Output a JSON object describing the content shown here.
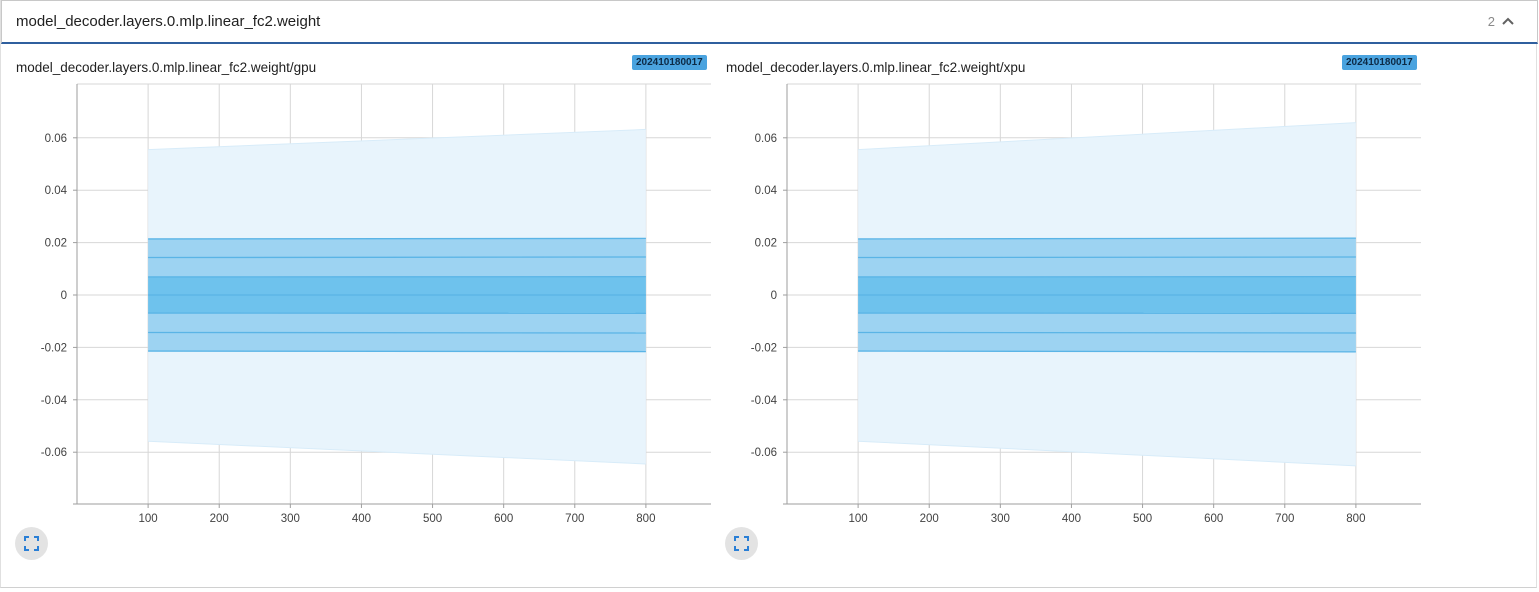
{
  "group": {
    "title": "model_decoder.layers.0.mlp.linear_fc2.weight",
    "count": "2"
  },
  "icons": {
    "collapse": "chevron-up-icon",
    "fullscreen": "fullscreen-icon"
  },
  "colors": {
    "band_outer": "#e8f4fc",
    "band_mid": "#9dd3f2",
    "band_inner": "#6ec2ed",
    "band_line": "#5ab4e6",
    "badge": "#4aa3df",
    "header_border": "#2f5f9e"
  },
  "charts": [
    {
      "title": "model_decoder.layers.0.mlp.linear_fc2.weight/gpu",
      "run": "202410180017"
    },
    {
      "title": "model_decoder.layers.0.mlp.linear_fc2.weight/xpu",
      "run": "202410180017"
    }
  ],
  "chart_data": [
    {
      "type": "area",
      "title": "model_decoder.layers.0.mlp.linear_fc2.weight/gpu",
      "x_ticks": [
        "100",
        "200",
        "300",
        "400",
        "500",
        "600",
        "700",
        "800"
      ],
      "y_ticks": [
        "0.06",
        "0.04",
        "0.02",
        "0",
        "-0.02",
        "-0.04",
        "-0.06"
      ],
      "xlim": [
        0,
        900
      ],
      "ylim": [
        -0.08,
        0.08
      ],
      "grid": true,
      "x": [
        100,
        800
      ],
      "series": [
        {
          "values": [
            0.0555,
            0.0632
          ]
        },
        {
          "values": [
            0.0214,
            0.0216
          ]
        },
        {
          "values": [
            0.0143,
            0.0145
          ]
        },
        {
          "values": [
            0.0069,
            0.007
          ]
        },
        {
          "values": [
            0.0,
            0.0
          ]
        },
        {
          "values": [
            -0.0069,
            -0.007
          ]
        },
        {
          "values": [
            -0.0143,
            -0.0145
          ]
        },
        {
          "values": [
            -0.0214,
            -0.0216
          ]
        },
        {
          "values": [
            -0.0558,
            -0.0645
          ]
        }
      ]
    },
    {
      "type": "area",
      "title": "model_decoder.layers.0.mlp.linear_fc2.weight/xpu",
      "x_ticks": [
        "100",
        "200",
        "300",
        "400",
        "500",
        "600",
        "700",
        "800"
      ],
      "y_ticks": [
        "0.06",
        "0.04",
        "0.02",
        "0",
        "-0.02",
        "-0.04",
        "-0.06"
      ],
      "xlim": [
        0,
        900
      ],
      "ylim": [
        -0.08,
        0.08
      ],
      "grid": true,
      "x": [
        100,
        800
      ],
      "series": [
        {
          "values": [
            0.0555,
            0.0658
          ]
        },
        {
          "values": [
            0.0214,
            0.0217
          ]
        },
        {
          "values": [
            0.0143,
            0.0145
          ]
        },
        {
          "values": [
            0.0069,
            0.007
          ]
        },
        {
          "values": [
            0.0,
            0.0
          ]
        },
        {
          "values": [
            -0.0069,
            -0.007
          ]
        },
        {
          "values": [
            -0.0143,
            -0.0145
          ]
        },
        {
          "values": [
            -0.0214,
            -0.0217
          ]
        },
        {
          "values": [
            -0.0558,
            -0.0652
          ]
        }
      ]
    }
  ]
}
